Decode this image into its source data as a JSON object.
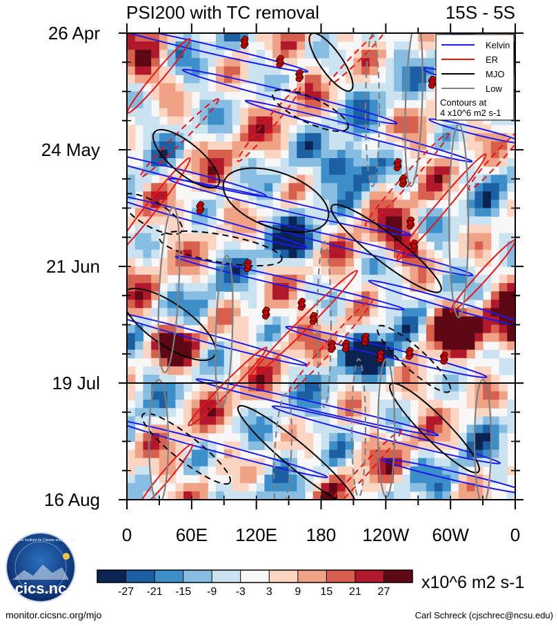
{
  "chart_data": {
    "type": "heatmap",
    "title_left": "PSI200 with TC removal",
    "title_right": "15S - 5S",
    "xlabel": "",
    "ylabel": "",
    "x_ticks": [
      {
        "lon": 0,
        "label": "0"
      },
      {
        "lon": 60,
        "label": "60E"
      },
      {
        "lon": 120,
        "label": "120E"
      },
      {
        "lon": 180,
        "label": "180"
      },
      {
        "lon": 240,
        "label": "120W"
      },
      {
        "lon": 300,
        "label": "60W"
      },
      {
        "lon": 360,
        "label": "0"
      }
    ],
    "xlim": [
      0,
      360
    ],
    "y_ticks": [
      {
        "day": 0,
        "label": "26 Apr"
      },
      {
        "day": 28,
        "label": "24 May"
      },
      {
        "day": 56,
        "label": "21 Jun"
      },
      {
        "day": 84,
        "label": "19 Jul"
      },
      {
        "day": 112,
        "label": "16 Aug"
      }
    ],
    "ylim_days": [
      0,
      112
    ],
    "current_date_line_day": 84,
    "colorbar": {
      "levels": [
        "-27",
        "-21",
        "-15",
        "-9",
        "-3",
        "3",
        "9",
        "15",
        "21",
        "27"
      ],
      "colors": [
        "#0a2350",
        "#1d5fa3",
        "#3d8fc9",
        "#86bde0",
        "#cbe2f1",
        "#f7f7f7",
        "#fbd5c2",
        "#f0a286",
        "#d6604d",
        "#b2182b",
        "#5e0815"
      ],
      "units": "x10^6 m2 s-1"
    },
    "legend": {
      "position": "top-right",
      "entries": [
        {
          "name": "Kelvin",
          "color": "#1a1aee"
        },
        {
          "name": "ER",
          "color": "#ee1111"
        },
        {
          "name": "MJO",
          "color": "#000000"
        },
        {
          "name": "Low",
          "color": "#808080"
        }
      ],
      "note_line1": "Contours at",
      "note_line2": "4 x10^6 m2 s-1"
    },
    "tropical_cyclones": [
      {
        "lon": 109,
        "day": 2.2
      },
      {
        "lon": 142,
        "day": 6.8
      },
      {
        "lon": 160,
        "day": 10.2
      },
      {
        "lon": 68,
        "day": 41.9
      },
      {
        "lon": 112,
        "day": 55.8
      },
      {
        "lon": 129,
        "day": 67.2
      },
      {
        "lon": 162,
        "day": 65.1
      },
      {
        "lon": 173,
        "day": 68.5
      },
      {
        "lon": 190,
        "day": 75.2
      },
      {
        "lon": 203,
        "day": 75.1
      },
      {
        "lon": 221,
        "day": 73.5
      },
      {
        "lon": 235,
        "day": 77.6
      },
      {
        "lon": 262,
        "day": 76.9
      },
      {
        "lon": 294,
        "day": 78.0
      },
      {
        "lon": 251,
        "day": 31.6
      },
      {
        "lon": 256,
        "day": 35.5
      },
      {
        "lon": 263,
        "day": 45.6
      },
      {
        "lon": 266,
        "day": 51.1
      },
      {
        "lon": 283,
        "day": 11.8
      }
    ]
  },
  "footer": {
    "logo_text": "cics.nc",
    "logo_ring_text": "Cooperative Institute for Climate and Satellites",
    "url": "monitor.cicsnc.org/mjo",
    "credit": "Carl Schreck (cjschrec@ncsu.edu)"
  }
}
